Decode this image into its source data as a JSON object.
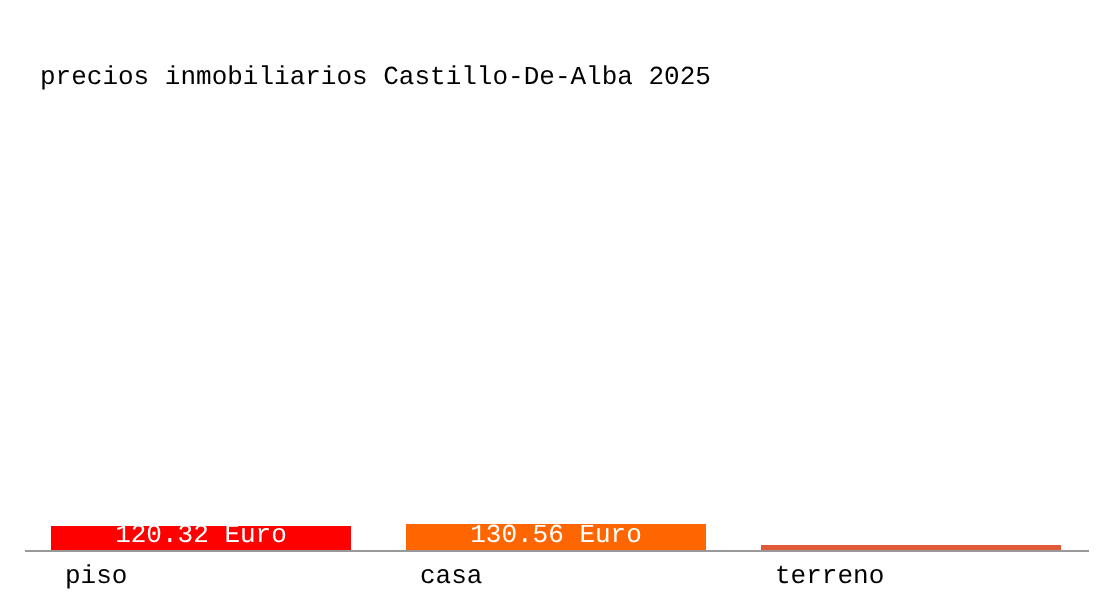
{
  "chart_data": {
    "type": "bar",
    "title": "precios inmobiliarios Castillo-De-Alba 2025",
    "categories": [
      "piso",
      "casa",
      "terreno"
    ],
    "values": [
      120.32,
      130.56,
      25
    ],
    "colors": [
      "#ff0000",
      "#ff6600",
      "#e05a38"
    ],
    "value_labels": [
      "120.32 Euro",
      "130.56 Euro",
      null
    ]
  }
}
